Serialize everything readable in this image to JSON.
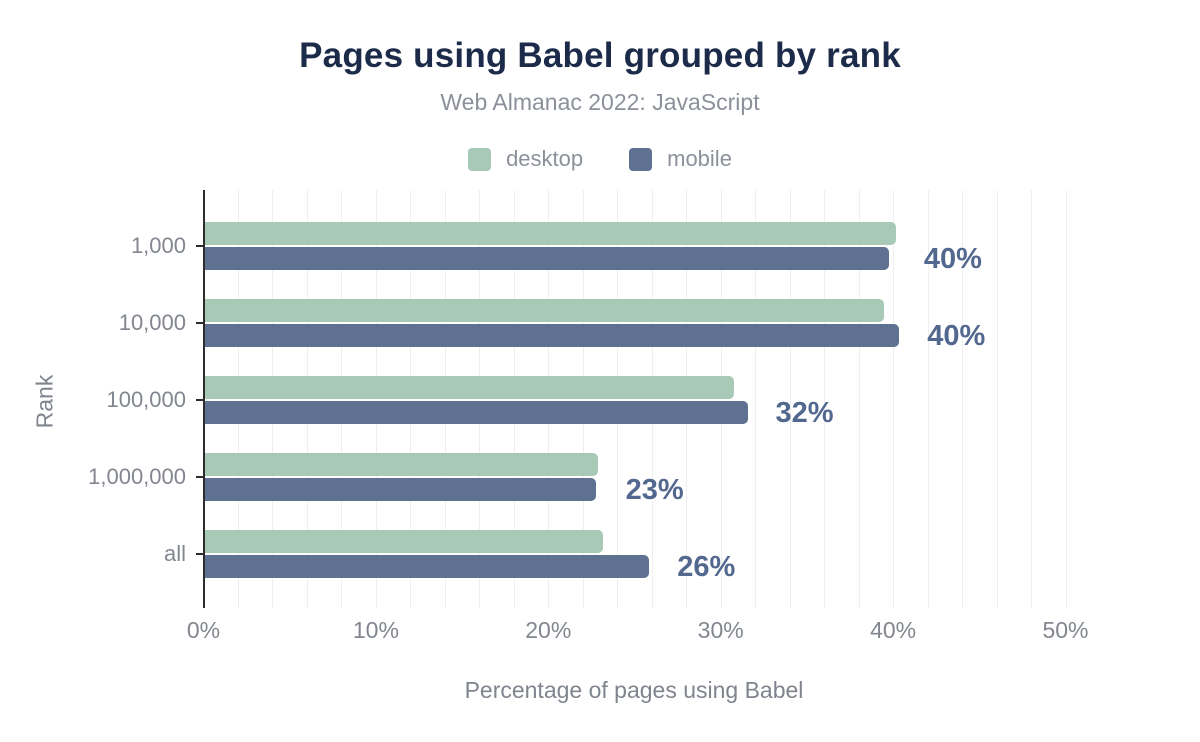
{
  "title": "Pages using Babel grouped by rank",
  "subtitle": "Web Almanac 2022: JavaScript",
  "colors": {
    "desktop": "#a8c9b5",
    "mobile": "#5f7190",
    "title": "#1d2b4a",
    "value_label": "#53688e",
    "axis": "#2d2d2d",
    "gridline": "#efefef",
    "muted_text": "#8b909a"
  },
  "legend": [
    {
      "label": "desktop",
      "color": "#a8c9b5"
    },
    {
      "label": "mobile",
      "color": "#5f7190"
    }
  ],
  "chart_data": {
    "type": "bar",
    "orientation": "horizontal",
    "title": "Pages using Babel grouped by rank",
    "subtitle": "Web Almanac 2022: JavaScript",
    "categories": [
      "1,000",
      "10,000",
      "100,000",
      "1,000,000",
      "all"
    ],
    "series": [
      {
        "name": "desktop",
        "color": "#a8c9b5",
        "values": [
          40.1,
          39.4,
          30.7,
          22.8,
          23.1
        ]
      },
      {
        "name": "mobile",
        "color": "#5f7190",
        "values": [
          39.7,
          40.3,
          31.5,
          22.7,
          25.8
        ]
      }
    ],
    "value_labels": [
      "40%",
      "40%",
      "32%",
      "23%",
      "26%"
    ],
    "xlabel": "Percentage of pages using Babel",
    "ylabel": "Rank",
    "x_ticks": [
      {
        "pct": 0,
        "label": "0%"
      },
      {
        "pct": 10,
        "label": "10%"
      },
      {
        "pct": 20,
        "label": "20%"
      },
      {
        "pct": 30,
        "label": "30%"
      },
      {
        "pct": 40,
        "label": "40%"
      },
      {
        "pct": 50,
        "label": "50%"
      }
    ],
    "xlim": [
      0,
      50
    ],
    "grid_step_pct": 2,
    "grid": true,
    "legend_position": "top"
  }
}
